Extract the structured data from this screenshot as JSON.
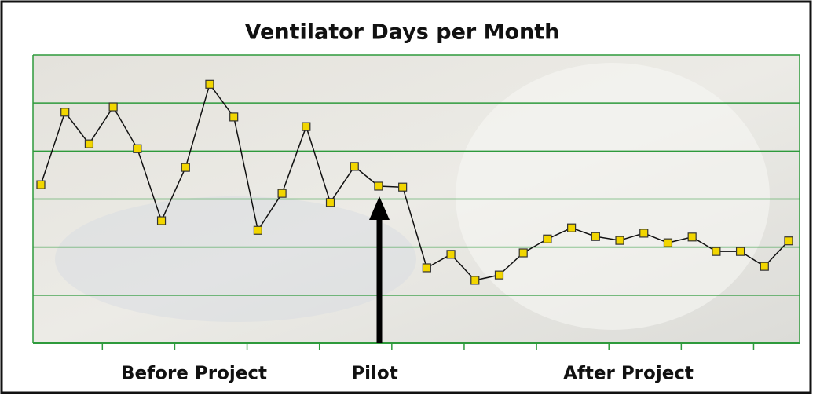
{
  "chart_data": {
    "type": "line",
    "title": "Ventilator Days per Month",
    "categories": [
      null,
      null,
      null,
      null,
      null,
      null,
      null,
      null,
      null,
      null,
      null,
      null,
      null,
      null,
      null,
      null,
      null,
      null,
      null,
      null,
      null,
      null,
      null,
      null,
      null,
      null,
      null,
      null,
      null,
      null,
      null,
      null
    ],
    "values": [
      3.3,
      4.81,
      4.15,
      4.92,
      4.05,
      2.55,
      3.66,
      5.39,
      4.71,
      2.35,
      3.12,
      4.51,
      2.93,
      3.68,
      3.27,
      3.25,
      1.57,
      1.85,
      1.31,
      1.42,
      1.88,
      2.17,
      2.4,
      2.22,
      2.14,
      2.29,
      2.09,
      2.21,
      1.91,
      1.91,
      1.6,
      2.13
    ],
    "color": "#111111",
    "marker_color": "#f2d600",
    "grid_color": "#2e9a3c",
    "ylim": [
      0,
      6
    ],
    "yticks": [
      1,
      2,
      3,
      4,
      5,
      6
    ],
    "grid": true,
    "annotations": [
      "Before Project",
      "Pilot",
      "After Project"
    ]
  }
}
